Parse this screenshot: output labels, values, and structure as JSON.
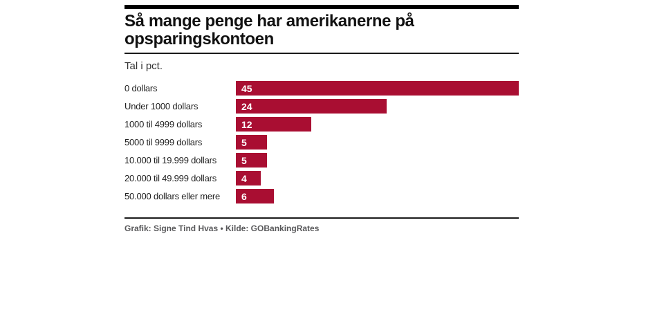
{
  "header": {
    "title": "Så mange penge har amerikanerne på opsparingskontoen",
    "subtitle": "Tal i pct."
  },
  "chart_data": {
    "type": "bar",
    "orientation": "horizontal",
    "title": "Så mange penge har amerikanerne på opsparingskontoen",
    "unit_label": "Tal i pct.",
    "categories": [
      "0 dollars",
      "Under 1000 dollars",
      "1000 til 4999 dollars",
      "5000 til 9999 dollars",
      "10.000 til 19.999 dollars",
      "20.000 til 49.999 dollars",
      "50.000 dollars eller mere"
    ],
    "values": [
      45,
      24,
      12,
      5,
      5,
      4,
      6
    ],
    "xlim": [
      0,
      45
    ],
    "grid": false,
    "legend": false,
    "value_labels": "inside-left"
  },
  "footer": {
    "credit": "Grafik: Signe Tind Hvas • Kilde: GOBankingRates"
  },
  "colors": {
    "bar": "#a90e32",
    "bar_value_text": "#ffffff",
    "top_bar": "#000000",
    "rule": "#1a1a1a",
    "title_text": "#111111",
    "credit_text": "#58585a"
  }
}
